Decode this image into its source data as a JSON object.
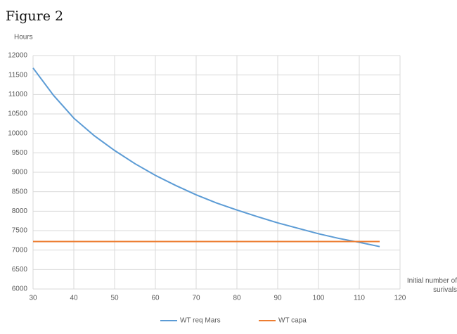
{
  "chart_data": {
    "type": "line",
    "title": "Figure 2",
    "y_label": "Hours",
    "x_label": "Initial number of surivals",
    "x": [
      30,
      35,
      40,
      45,
      50,
      55,
      60,
      65,
      70,
      75,
      80,
      85,
      90,
      95,
      100,
      105,
      110,
      115
    ],
    "series": [
      {
        "name": "WT req Mars",
        "color": "#5b9bd5",
        "values": [
          11680,
          10980,
          10390,
          9940,
          9560,
          9220,
          8920,
          8660,
          8420,
          8210,
          8030,
          7860,
          7700,
          7560,
          7420,
          7300,
          7200,
          7090
        ]
      },
      {
        "name": "WT capa",
        "color": "#ed7d31",
        "values": [
          7220,
          7220,
          7220,
          7220,
          7220,
          7220,
          7220,
          7220,
          7220,
          7220,
          7220,
          7220,
          7220,
          7220,
          7220,
          7220,
          7220,
          7220
        ]
      }
    ],
    "xlim": [
      30,
      120
    ],
    "xticks": [
      30,
      40,
      50,
      60,
      70,
      80,
      90,
      100,
      110,
      120
    ],
    "ylim": [
      6000,
      12000
    ],
    "yticks": [
      6000,
      6500,
      7000,
      7500,
      8000,
      8500,
      9000,
      9500,
      10000,
      10500,
      11000,
      11500,
      12000
    ],
    "grid": true,
    "legend": "bottom"
  }
}
